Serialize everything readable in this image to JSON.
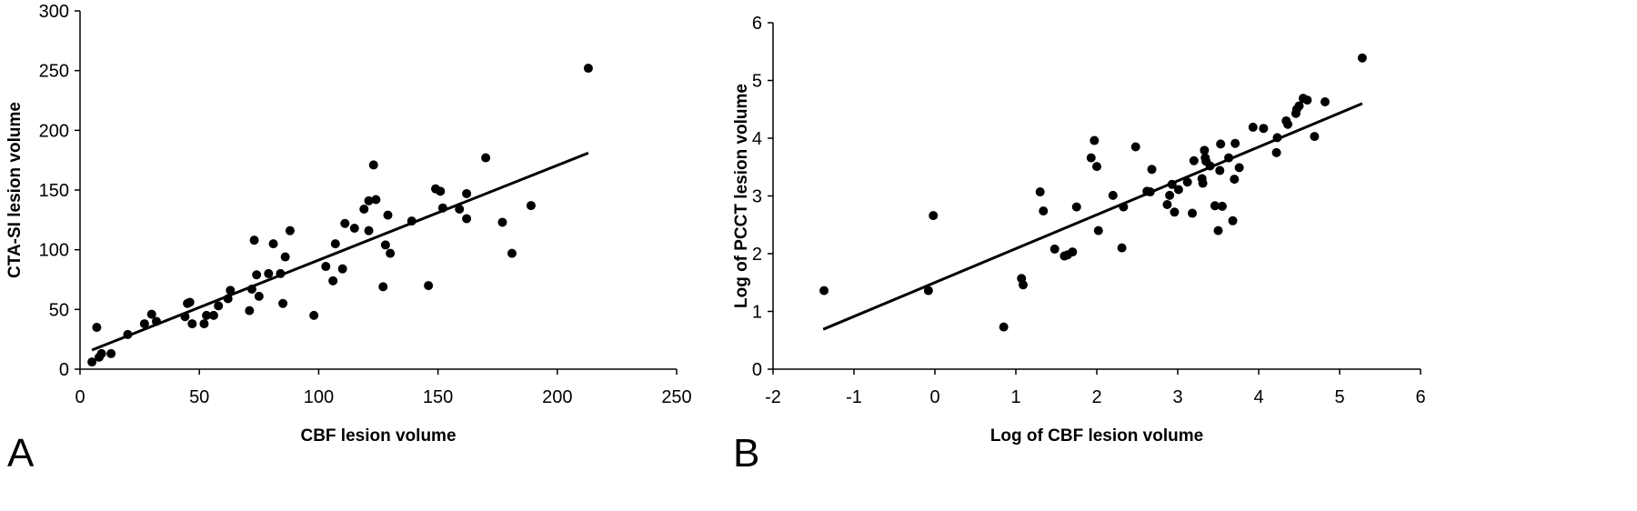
{
  "chart_data": [
    {
      "type": "scatter",
      "panel_label": "A",
      "title": "",
      "xlabel": "CBF lesion volume",
      "ylabel": "CTA-SI lesion volume",
      "xlim": [
        0,
        250
      ],
      "ylim": [
        0,
        300
      ],
      "xticks": [
        0,
        50,
        100,
        150,
        200,
        250
      ],
      "yticks": [
        0,
        50,
        100,
        150,
        200,
        250,
        300
      ],
      "grid": false,
      "legend": "none",
      "marker_color": "#000000",
      "trendline": {
        "x": [
          5,
          213
        ],
        "y": [
          16,
          181
        ]
      },
      "points": [
        [
          5,
          6
        ],
        [
          8,
          10
        ],
        [
          9,
          13
        ],
        [
          13,
          13
        ],
        [
          7,
          35
        ],
        [
          20,
          29
        ],
        [
          27,
          38
        ],
        [
          30,
          46
        ],
        [
          32,
          40
        ],
        [
          44,
          44
        ],
        [
          45,
          55
        ],
        [
          46,
          56
        ],
        [
          47,
          38
        ],
        [
          52,
          38
        ],
        [
          53,
          45
        ],
        [
          56,
          45
        ],
        [
          58,
          53
        ],
        [
          62,
          59
        ],
        [
          63,
          66
        ],
        [
          71,
          49
        ],
        [
          72,
          67
        ],
        [
          73,
          108
        ],
        [
          74,
          79
        ],
        [
          75,
          61
        ],
        [
          79,
          80
        ],
        [
          81,
          105
        ],
        [
          84,
          80
        ],
        [
          85,
          55
        ],
        [
          86,
          94
        ],
        [
          88,
          116
        ],
        [
          98,
          45
        ],
        [
          103,
          86
        ],
        [
          106,
          74
        ],
        [
          107,
          105
        ],
        [
          110,
          84
        ],
        [
          111,
          122
        ],
        [
          115,
          118
        ],
        [
          119,
          134
        ],
        [
          121,
          116
        ],
        [
          121,
          141
        ],
        [
          123,
          171
        ],
        [
          124,
          142
        ],
        [
          127,
          69
        ],
        [
          128,
          104
        ],
        [
          129,
          129
        ],
        [
          130,
          97
        ],
        [
          139,
          124
        ],
        [
          146,
          70
        ],
        [
          149,
          151
        ],
        [
          151,
          149
        ],
        [
          152,
          135
        ],
        [
          159,
          134
        ],
        [
          162,
          126
        ],
        [
          162,
          147
        ],
        [
          170,
          177
        ],
        [
          177,
          123
        ],
        [
          181,
          97
        ],
        [
          189,
          137
        ],
        [
          213,
          252
        ]
      ]
    },
    {
      "type": "scatter",
      "panel_label": "B",
      "title": "",
      "xlabel": "Log of CBF lesion volume",
      "ylabel": "Log of PCCT lesion volume",
      "xlim": [
        -2,
        6
      ],
      "ylim": [
        0,
        6
      ],
      "xticks": [
        -2,
        -1,
        0,
        1,
        2,
        3,
        4,
        5,
        6
      ],
      "yticks": [
        0,
        1,
        2,
        3,
        4,
        5,
        6
      ],
      "grid": false,
      "legend": "none",
      "marker_color": "#000000",
      "trendline": {
        "x": [
          -1.38,
          5.28
        ],
        "y": [
          0.69,
          4.6
        ]
      },
      "points": [
        [
          -1.37,
          1.36
        ],
        [
          -0.08,
          1.36
        ],
        [
          -0.02,
          2.66
        ],
        [
          0.85,
          0.73
        ],
        [
          1.07,
          1.57
        ],
        [
          1.09,
          1.46
        ],
        [
          1.3,
          3.07
        ],
        [
          1.34,
          2.74
        ],
        [
          1.48,
          2.08
        ],
        [
          1.6,
          1.96
        ],
        [
          1.64,
          1.98
        ],
        [
          1.7,
          2.03
        ],
        [
          1.75,
          2.81
        ],
        [
          1.93,
          3.66
        ],
        [
          1.97,
          3.96
        ],
        [
          2.0,
          3.51
        ],
        [
          2.02,
          2.4
        ],
        [
          2.2,
          3.01
        ],
        [
          2.31,
          2.1
        ],
        [
          2.33,
          2.81
        ],
        [
          2.48,
          3.85
        ],
        [
          2.62,
          3.08
        ],
        [
          2.66,
          3.07
        ],
        [
          2.68,
          3.46
        ],
        [
          2.87,
          2.85
        ],
        [
          2.9,
          3.01
        ],
        [
          2.93,
          3.2
        ],
        [
          2.96,
          2.72
        ],
        [
          3.01,
          3.11
        ],
        [
          3.12,
          3.24
        ],
        [
          3.18,
          2.7
        ],
        [
          3.2,
          3.61
        ],
        [
          3.3,
          3.3
        ],
        [
          3.31,
          3.22
        ],
        [
          3.33,
          3.79
        ],
        [
          3.34,
          3.66
        ],
        [
          3.35,
          3.6
        ],
        [
          3.4,
          3.52
        ],
        [
          3.46,
          2.83
        ],
        [
          3.5,
          2.4
        ],
        [
          3.52,
          3.44
        ],
        [
          3.53,
          3.9
        ],
        [
          3.55,
          2.82
        ],
        [
          3.63,
          3.66
        ],
        [
          3.68,
          2.57
        ],
        [
          3.7,
          3.29
        ],
        [
          3.71,
          3.91
        ],
        [
          3.76,
          3.49
        ],
        [
          3.93,
          4.19
        ],
        [
          4.06,
          4.17
        ],
        [
          4.22,
          3.75
        ],
        [
          4.23,
          4.01
        ],
        [
          4.34,
          4.3
        ],
        [
          4.36,
          4.24
        ],
        [
          4.46,
          4.43
        ],
        [
          4.47,
          4.5
        ],
        [
          4.5,
          4.56
        ],
        [
          4.55,
          4.69
        ],
        [
          4.6,
          4.66
        ],
        [
          4.69,
          4.03
        ],
        [
          4.82,
          4.63
        ],
        [
          5.28,
          5.39
        ]
      ]
    }
  ]
}
